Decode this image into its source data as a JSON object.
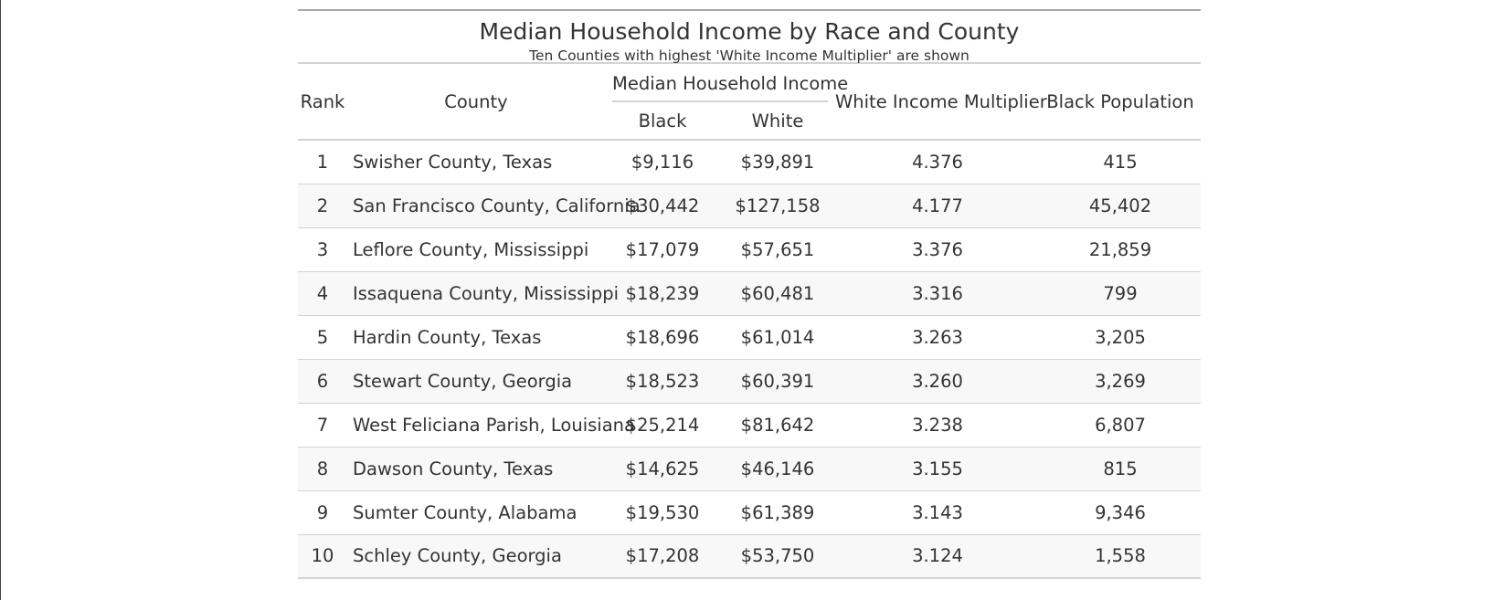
{
  "table": {
    "title": "Median Household Income by Race and County",
    "subtitle": "Ten Counties with highest 'White Income Multiplier' are shown",
    "columns": {
      "rank": "Rank",
      "county": "County",
      "spanner": "Median Household Income",
      "black": "Black",
      "white": "White",
      "multiplier": "White Income Multiplier",
      "population": "Black Population"
    },
    "rows": [
      {
        "rank": "1",
        "county": "Swisher County, Texas",
        "black": "$9,116",
        "white": "$39,891",
        "multiplier": "4.376",
        "population": "415"
      },
      {
        "rank": "2",
        "county": "San Francisco County, California",
        "black": "$30,442",
        "white": "$127,158",
        "multiplier": "4.177",
        "population": "45,402"
      },
      {
        "rank": "3",
        "county": "Leflore County, Mississippi",
        "black": "$17,079",
        "white": "$57,651",
        "multiplier": "3.376",
        "population": "21,859"
      },
      {
        "rank": "4",
        "county": "Issaquena County, Mississippi",
        "black": "$18,239",
        "white": "$60,481",
        "multiplier": "3.316",
        "population": "799"
      },
      {
        "rank": "5",
        "county": "Hardin County, Texas",
        "black": "$18,696",
        "white": "$61,014",
        "multiplier": "3.263",
        "population": "3,205"
      },
      {
        "rank": "6",
        "county": "Stewart County, Georgia",
        "black": "$18,523",
        "white": "$60,391",
        "multiplier": "3.260",
        "population": "3,269"
      },
      {
        "rank": "7",
        "county": "West Feliciana Parish, Louisiana",
        "black": "$25,214",
        "white": "$81,642",
        "multiplier": "3.238",
        "population": "6,807"
      },
      {
        "rank": "8",
        "county": "Dawson County, Texas",
        "black": "$14,625",
        "white": "$46,146",
        "multiplier": "3.155",
        "population": "815"
      },
      {
        "rank": "9",
        "county": "Sumter County, Alabama",
        "black": "$19,530",
        "white": "$61,389",
        "multiplier": "3.143",
        "population": "9,346"
      },
      {
        "rank": "10",
        "county": "Schley County, Georgia",
        "black": "$17,208",
        "white": "$53,750",
        "multiplier": "3.124",
        "population": "1,558"
      }
    ]
  }
}
